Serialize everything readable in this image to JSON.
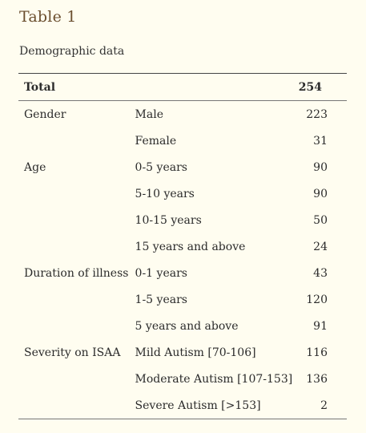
{
  "title": "Table 1",
  "caption": "Demographic data",
  "header": {
    "label": "Total",
    "value": "254"
  },
  "rows": [
    {
      "category": "Gender",
      "item": "Male",
      "value": "223"
    },
    {
      "category": "",
      "item": "Female",
      "value": "31"
    },
    {
      "category": "Age",
      "item": "0-5 years",
      "value": "90"
    },
    {
      "category": "",
      "item": "5-10 years",
      "value": "90"
    },
    {
      "category": "",
      "item": "10-15 years",
      "value": "50"
    },
    {
      "category": "",
      "item": "15 years and above",
      "value": "24"
    },
    {
      "category": "Duration of illness",
      "item": "0-1 years",
      "value": "43"
    },
    {
      "category": "",
      "item": "1-5 years",
      "value": "120"
    },
    {
      "category": "",
      "item": "5 years and above",
      "value": "91"
    },
    {
      "category": "Severity on ISAA",
      "item": "Mild Autism [70-106]",
      "value": "116"
    },
    {
      "category": "",
      "item": "Moderate Autism [107-153]",
      "value": "136"
    },
    {
      "category": "",
      "item": "Severe Autism [>153]",
      "value": "2"
    }
  ]
}
